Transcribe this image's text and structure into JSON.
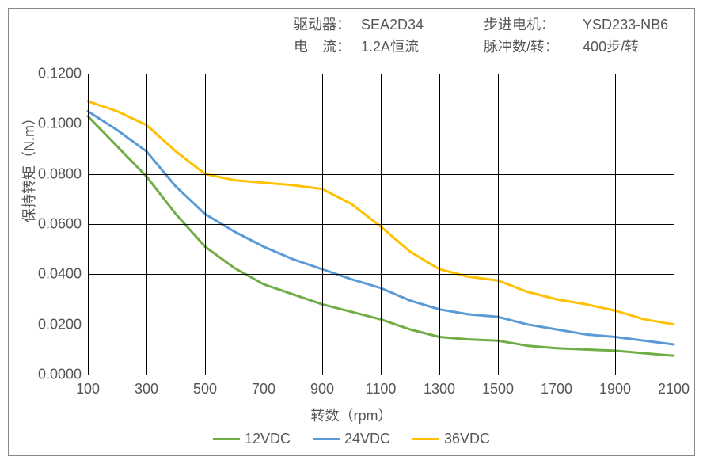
{
  "header": {
    "driver_label": "驱动器：",
    "driver_value": "SEA2D34",
    "motor_label": "步进电机：",
    "motor_value": "YSD233-NB6",
    "current_label": "电　流：",
    "current_value": "1.2A恒流",
    "pulse_label": "脉冲数/转：",
    "pulse_value": "400步/转"
  },
  "chart": {
    "type": "line",
    "xlabel": "转数（rpm）",
    "ylabel": "保持转矩（N.m）",
    "background_color": "#ffffff",
    "grid_color": "#000000",
    "text_color": "#555555",
    "line_width": 3,
    "label_fontsize": 18,
    "tick_fontsize": 18,
    "xlim": [
      100,
      2100
    ],
    "ylim": [
      0.0,
      0.12
    ],
    "xticks": [
      100,
      300,
      500,
      700,
      900,
      1100,
      1300,
      1500,
      1700,
      1900,
      2100
    ],
    "yticks": [
      0.0,
      0.02,
      0.04,
      0.06,
      0.08,
      0.1,
      0.12
    ],
    "ytick_labels": [
      "0.0000",
      "0.0200",
      "0.0400",
      "0.0600",
      "0.0800",
      "0.1000",
      "0.1200"
    ],
    "series": [
      {
        "name": "12VDC",
        "color": "#70ad47",
        "x": [
          100,
          200,
          300,
          400,
          500,
          600,
          700,
          800,
          900,
          1000,
          1100,
          1200,
          1300,
          1400,
          1500,
          1600,
          1700,
          1800,
          1900,
          2000,
          2100
        ],
        "y": [
          0.103,
          0.091,
          0.079,
          0.064,
          0.051,
          0.0425,
          0.036,
          0.032,
          0.028,
          0.025,
          0.022,
          0.018,
          0.015,
          0.014,
          0.0135,
          0.0115,
          0.0105,
          0.01,
          0.0095,
          0.0085,
          0.0075
        ]
      },
      {
        "name": "24VDC",
        "color": "#5b9bd5",
        "x": [
          100,
          200,
          300,
          400,
          500,
          600,
          700,
          800,
          900,
          1000,
          1100,
          1200,
          1300,
          1400,
          1500,
          1600,
          1700,
          1800,
          1900,
          2000,
          2100
        ],
        "y": [
          0.105,
          0.0975,
          0.089,
          0.075,
          0.064,
          0.057,
          0.051,
          0.046,
          0.042,
          0.038,
          0.0345,
          0.0295,
          0.026,
          0.024,
          0.023,
          0.02,
          0.018,
          0.016,
          0.015,
          0.0135,
          0.012
        ]
      },
      {
        "name": "36VDC",
        "color": "#ffc000",
        "x": [
          100,
          200,
          300,
          400,
          500,
          600,
          700,
          800,
          900,
          1000,
          1100,
          1200,
          1300,
          1400,
          1500,
          1600,
          1700,
          1800,
          1900,
          2000,
          2100
        ],
        "y": [
          0.109,
          0.105,
          0.0995,
          0.089,
          0.08,
          0.0775,
          0.0765,
          0.0755,
          0.074,
          0.068,
          0.059,
          0.049,
          0.042,
          0.039,
          0.0375,
          0.033,
          0.03,
          0.028,
          0.0255,
          0.022,
          0.02
        ]
      }
    ]
  }
}
